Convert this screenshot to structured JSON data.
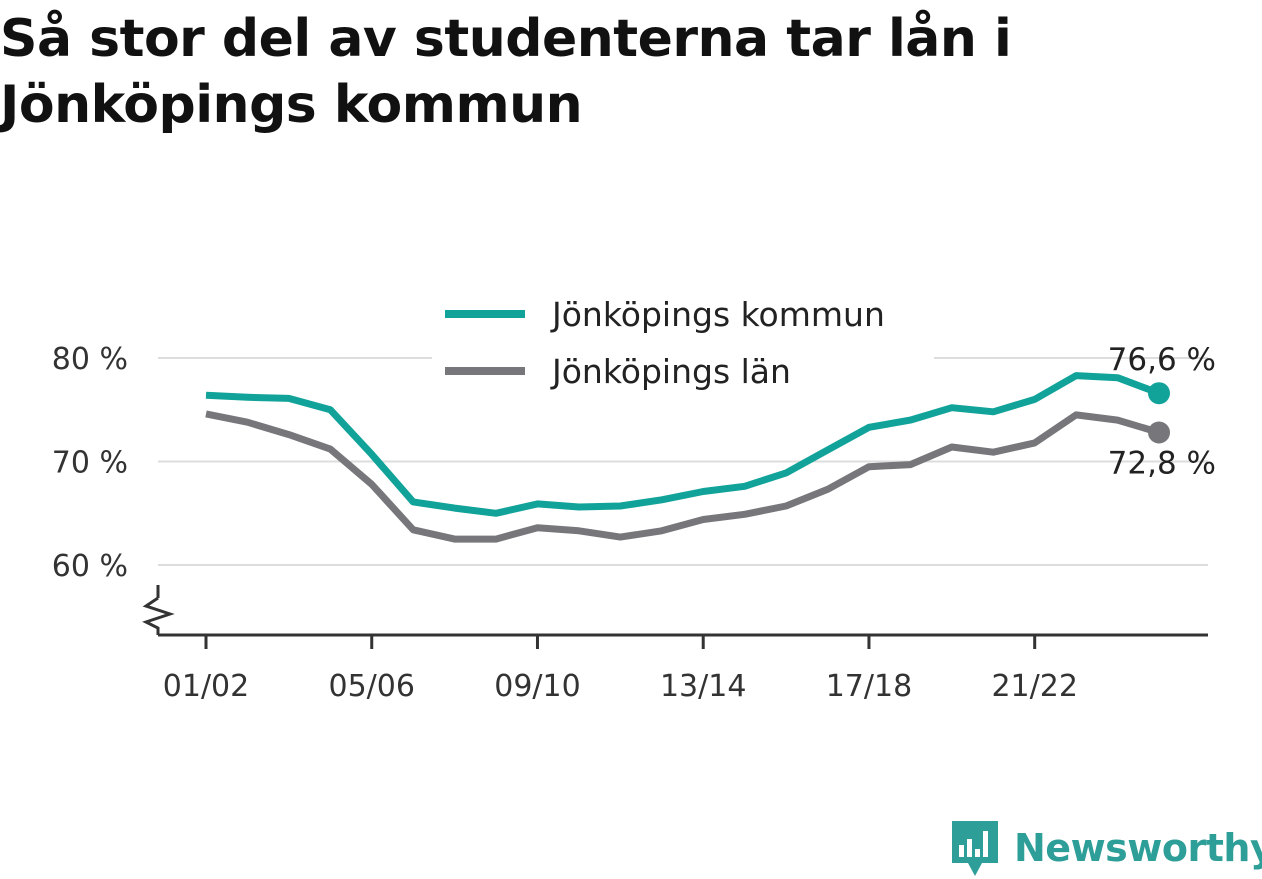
{
  "title": "Så stor del av studenterna tar lån i Jönköpings kommun",
  "brand": {
    "name": "Newsworthy",
    "icon": "newsworthy-logo-icon",
    "color": "#2e9e98"
  },
  "chart_data": {
    "type": "line",
    "title": "Så stor del av studenterna tar lån i Jönköpings kommun",
    "xlabel": "",
    "ylabel": "",
    "x": [
      "01/02",
      "02/03",
      "03/04",
      "04/05",
      "05/06",
      "06/07",
      "07/08",
      "08/09",
      "09/10",
      "10/11",
      "11/12",
      "12/13",
      "13/14",
      "14/15",
      "15/16",
      "16/17",
      "17/18",
      "18/19",
      "19/20",
      "20/21",
      "21/22",
      "22/23",
      "23/24",
      "24/25"
    ],
    "x_tick_labels": [
      "01/02",
      "05/06",
      "09/10",
      "13/14",
      "17/18",
      "21/22"
    ],
    "y_ticks": [
      60,
      70,
      80
    ],
    "y_tick_labels": [
      "60 %",
      "70 %",
      "80 %"
    ],
    "ylim": [
      53,
      85
    ],
    "y_axis_broken": true,
    "grid": "horizontal",
    "legend_position": "top-center",
    "series": [
      {
        "name": "Jönköpings kommun",
        "color": "#11a39a",
        "values": [
          76.4,
          76.2,
          76.1,
          75.0,
          70.7,
          66.1,
          65.5,
          65.0,
          65.9,
          65.6,
          65.7,
          66.3,
          67.1,
          67.6,
          68.9,
          71.1,
          73.3,
          74.0,
          75.2,
          74.8,
          76.0,
          78.3,
          78.1,
          76.6
        ],
        "end_label": "76,6 %"
      },
      {
        "name": "Jönköpings län",
        "color": "#77767b",
        "values": [
          74.6,
          73.8,
          72.6,
          71.2,
          67.8,
          63.4,
          62.5,
          62.5,
          63.6,
          63.3,
          62.7,
          63.3,
          64.4,
          64.9,
          65.7,
          67.3,
          69.5,
          69.7,
          71.4,
          70.9,
          71.8,
          74.5,
          74.0,
          72.8
        ],
        "end_label": "72,8 %"
      }
    ]
  }
}
